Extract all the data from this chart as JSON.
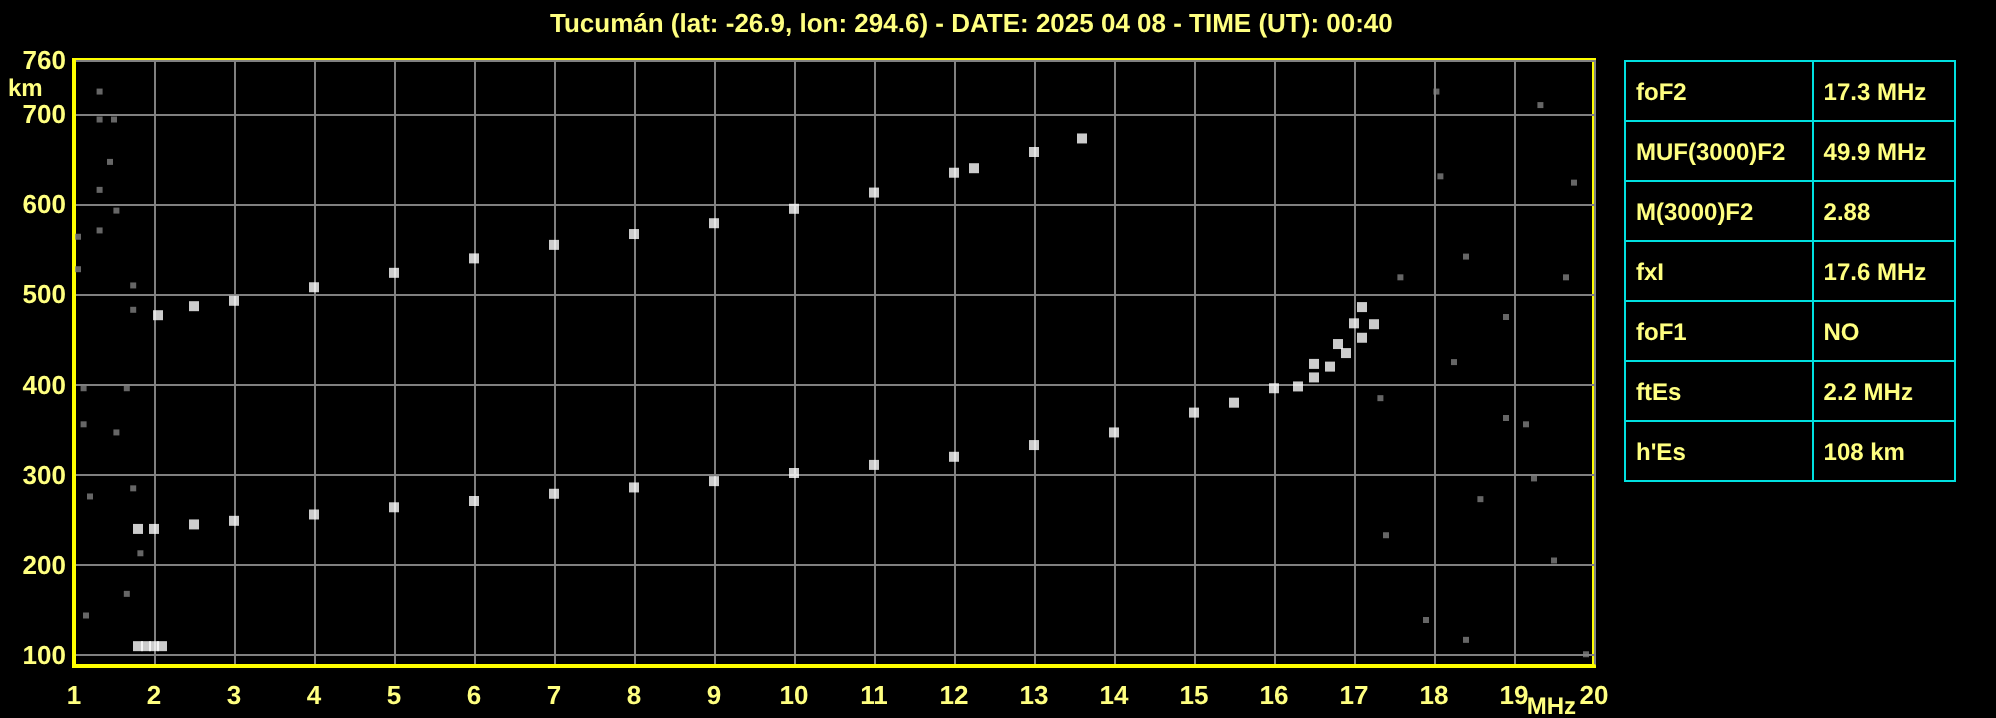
{
  "chart_data": [
    {
      "type": "scatter",
      "title": "Tucumán (lat: -26.9, lon: 294.6) - DATE: 2025 04 08 - TIME (UT): 00:40",
      "xlabel": "MHz",
      "ylabel": "km",
      "xlim": [
        1,
        20
      ],
      "ylim": [
        88,
        760
      ],
      "xticks": [
        1,
        2,
        3,
        4,
        5,
        6,
        7,
        8,
        9,
        10,
        11,
        12,
        13,
        14,
        15,
        16,
        17,
        18,
        19,
        20
      ],
      "yticks": [
        100,
        200,
        300,
        400,
        500,
        600,
        700,
        760
      ],
      "grid": true,
      "marker": "square",
      "series": [
        {
          "color": "#ffffff",
          "x": [
            1.8,
            2,
            2.5,
            3,
            4,
            5,
            6,
            7,
            8,
            9,
            10,
            11,
            12,
            13,
            14,
            15,
            15.5,
            16,
            16.5,
            16.8,
            17,
            17.1
          ],
          "values": [
            240,
            240,
            245,
            249,
            256,
            264,
            271,
            279,
            286,
            293,
            302,
            311,
            320,
            333,
            347,
            369,
            380,
            396,
            423,
            445,
            468,
            486
          ]
        },
        {
          "color": "#ffffff",
          "x": [
            16.3,
            16.5,
            16.7,
            16.9,
            17.1,
            17.25
          ],
          "values": [
            398,
            408,
            420,
            435,
            452,
            467
          ]
        },
        {
          "color": "#ffffff",
          "x": [
            2.05,
            2.5,
            3,
            4,
            5,
            6,
            7,
            8,
            9,
            10,
            11,
            12,
            12.25,
            13,
            13.6
          ],
          "values": [
            477,
            487,
            493,
            508,
            524,
            540,
            555,
            567,
            579,
            595,
            613,
            635,
            640,
            658,
            673
          ]
        },
        {
          "color": "#ffffff",
          "x": [
            1.8,
            1.9,
            2,
            2.1
          ],
          "values": [
            110,
            110,
            110,
            110
          ]
        },
        {
          "color": "#808080",
          "x": [
            18.03,
            18.4,
            17.58,
            18.9,
            18.25,
            19.25,
            19.5,
            18.58,
            17.9,
            18.9,
            19.75,
            19.33,
            17.33,
            17.4,
            19.9,
            18.4,
            19.15,
            18.08,
            19.65,
            1.12,
            1.12,
            1.66,
            1.53,
            1.2,
            1.74,
            1.83,
            1.66,
            1.15,
            1.32,
            1.32,
            1.5,
            1.45,
            1.32,
            1.53,
            1.32,
            1.74,
            1.74,
            1.05,
            1.05
          ],
          "values": [
            725,
            542,
            519,
            475,
            425,
            296,
            205,
            273,
            139,
            363,
            624,
            710,
            385,
            233,
            101,
            117,
            356,
            631,
            519,
            396,
            356,
            396,
            347,
            276,
            285,
            213,
            168,
            144,
            725,
            694,
            694,
            647,
            616,
            593,
            571,
            510,
            483,
            528,
            564
          ]
        }
      ]
    },
    {
      "type": "other",
      "annotations": [
        "foF2",
        "17.3 MHz",
        "MUF(3000)F2",
        "49.9 MHz",
        "M(3000)F2",
        "2.88",
        "fxI",
        "17.6 MHz",
        "foF1",
        "NO",
        "ftEs",
        "2.2 MHz",
        "h'Es",
        "108 km"
      ]
    }
  ]
}
